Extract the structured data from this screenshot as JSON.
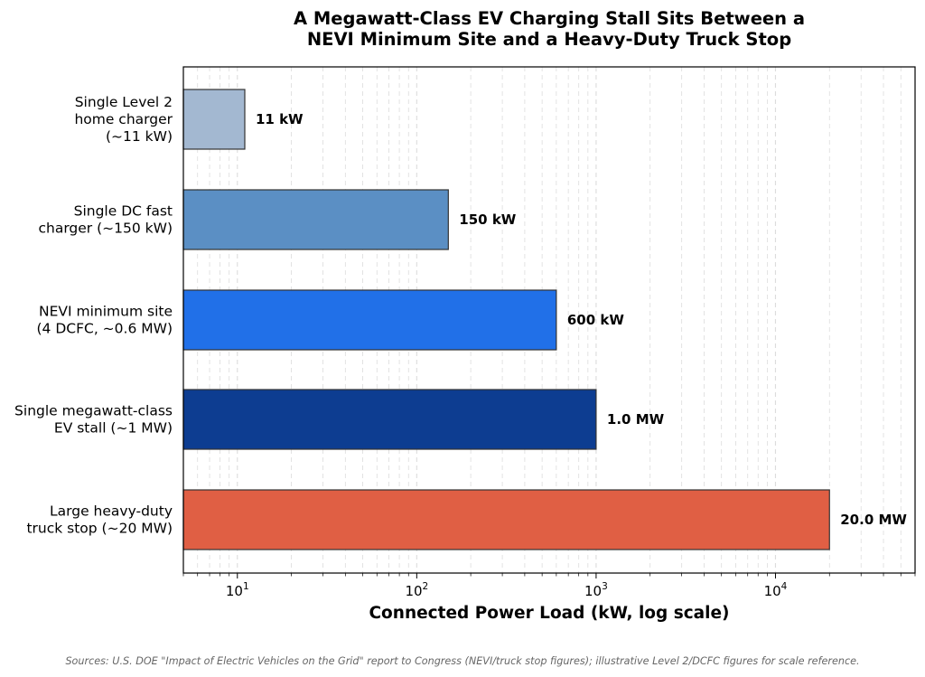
{
  "chart_data": {
    "type": "bar",
    "orientation": "horizontal",
    "title_lines": [
      "A Megawatt-Class EV Charging Stall Sits Between a",
      "NEVI Minimum Site and a Heavy-Duty Truck Stop"
    ],
    "categories": [
      {
        "lines": [
          "Single Level 2",
          "home charger",
          "(~11 kW)"
        ]
      },
      {
        "lines": [
          "Single DC fast",
          "charger (~150 kW)"
        ]
      },
      {
        "lines": [
          "NEVI minimum site",
          "(4 DCFC, ~0.6 MW)"
        ]
      },
      {
        "lines": [
          "Single megawatt-class",
          "EV stall (~1 MW)"
        ]
      },
      {
        "lines": [
          "Large heavy-duty",
          "truck stop (~20 MW)"
        ]
      }
    ],
    "values": [
      11,
      150,
      600,
      1000,
      20000
    ],
    "value_labels": [
      "11 kW",
      "150 kW",
      "600 kW",
      "1.0 MW",
      "20.0 MW"
    ],
    "colors": [
      "#a3b8d1",
      "#5b8fc4",
      "#2170e8",
      "#0d3d91",
      "#e05f44"
    ],
    "xlabel": "Connected Power Load (kW, log scale)",
    "ylabel": "",
    "xscale": "log",
    "xlim": [
      5,
      60000
    ],
    "xticks": [
      {
        "base": "10",
        "exp": "1"
      },
      {
        "base": "10",
        "exp": "2"
      },
      {
        "base": "10",
        "exp": "3"
      },
      {
        "base": "10",
        "exp": "4"
      }
    ],
    "grid": "vertical dashed, major and minor",
    "source_note": "Sources: U.S. DOE \"Impact of Electric Vehicles on the Grid\" report to Congress (NEVI/truck stop figures); illustrative Level 2/DCFC figures for scale reference."
  }
}
